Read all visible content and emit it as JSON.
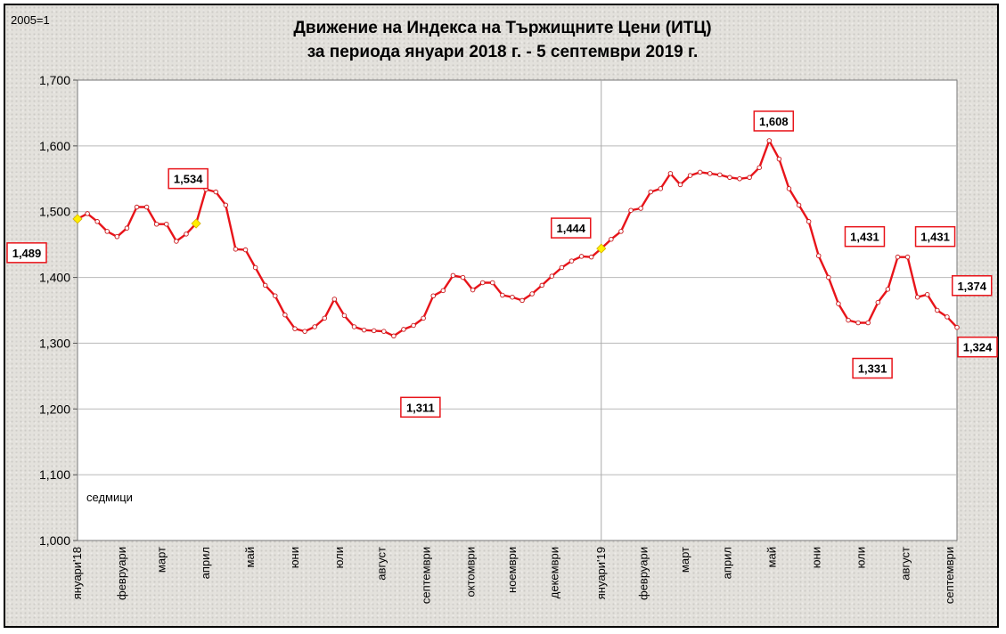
{
  "chart_data": {
    "type": "line",
    "title_line1": "Движение на Индекса на Тържищните Цени (ИТЦ)",
    "title_line2": "за периода януари 2018 г. -  5 септември 2019 г.",
    "base_note": "2005=1",
    "xlabel": "седмици",
    "ylim": [
      1.0,
      1.7
    ],
    "yticks": [
      1.0,
      1.1,
      1.2,
      1.3,
      1.4,
      1.5,
      1.6,
      1.7
    ],
    "ytick_labels": [
      "1,000",
      "1,100",
      "1,200",
      "1,300",
      "1,400",
      "1,500",
      "1,600",
      "1,700"
    ],
    "grid": true,
    "x_month_labels": [
      {
        "week": 0,
        "label": "януари'18"
      },
      {
        "week": 4.5,
        "label": "февруари"
      },
      {
        "week": 8.5,
        "label": "март"
      },
      {
        "week": 13,
        "label": "април"
      },
      {
        "week": 17.5,
        "label": "май"
      },
      {
        "week": 22,
        "label": "юни"
      },
      {
        "week": 26.5,
        "label": "юли"
      },
      {
        "week": 30.8,
        "label": "август"
      },
      {
        "week": 35.3,
        "label": "септември"
      },
      {
        "week": 39.8,
        "label": "октомври"
      },
      {
        "week": 44,
        "label": "ноември"
      },
      {
        "week": 48.3,
        "label": "декември"
      },
      {
        "week": 53,
        "label": "януари'19"
      },
      {
        "week": 57.3,
        "label": "февруари"
      },
      {
        "week": 61.5,
        "label": "март"
      },
      {
        "week": 65.8,
        "label": "април"
      },
      {
        "week": 70.3,
        "label": "май"
      },
      {
        "week": 74.8,
        "label": "юни"
      },
      {
        "week": 79.3,
        "label": "юли"
      },
      {
        "week": 83.8,
        "label": "август"
      },
      {
        "week": 88.3,
        "label": "септември"
      }
    ],
    "week_count": 89,
    "values": [
      1.489,
      1.497,
      1.485,
      1.47,
      1.462,
      1.475,
      1.507,
      1.507,
      1.481,
      1.481,
      1.455,
      1.466,
      1.482,
      1.534,
      1.53,
      1.51,
      1.443,
      1.442,
      1.415,
      1.388,
      1.372,
      1.343,
      1.322,
      1.318,
      1.325,
      1.338,
      1.367,
      1.342,
      1.325,
      1.32,
      1.319,
      1.318,
      1.311,
      1.321,
      1.327,
      1.338,
      1.372,
      1.38,
      1.403,
      1.4,
      1.381,
      1.392,
      1.392,
      1.373,
      1.37,
      1.365,
      1.375,
      1.388,
      1.402,
      1.415,
      1.425,
      1.432,
      1.431,
      1.444,
      1.458,
      1.47,
      1.502,
      1.505,
      1.53,
      1.535,
      1.558,
      1.541,
      1.555,
      1.56,
      1.558,
      1.556,
      1.552,
      1.55,
      1.552,
      1.567,
      1.608,
      1.58,
      1.535,
      1.51,
      1.485,
      1.433,
      1.4,
      1.36,
      1.335,
      1.331,
      1.331,
      1.362,
      1.382,
      1.431,
      1.431,
      1.37,
      1.374,
      1.35,
      1.34,
      1.324
    ],
    "highlighted_points": [
      0,
      12,
      53
    ],
    "annotations": [
      {
        "index": 0,
        "label": "1,489"
      },
      {
        "index": 13,
        "label": "1,534"
      },
      {
        "index": 32,
        "label": "1,311"
      },
      {
        "index": 53,
        "label": "1,444"
      },
      {
        "index": 70,
        "label": "1,608"
      },
      {
        "index": 79,
        "label": "1,331"
      },
      {
        "index": 83,
        "label": "1,431"
      },
      {
        "index": 84,
        "label": "1,431"
      },
      {
        "index": 86,
        "label": "1,374"
      },
      {
        "index": 89,
        "label": "1,324"
      }
    ],
    "line_color": "#e8141a",
    "marker_fill": "#ffffff",
    "highlight_color": "#ffee00",
    "annotation_border_color": "#e8141a"
  }
}
